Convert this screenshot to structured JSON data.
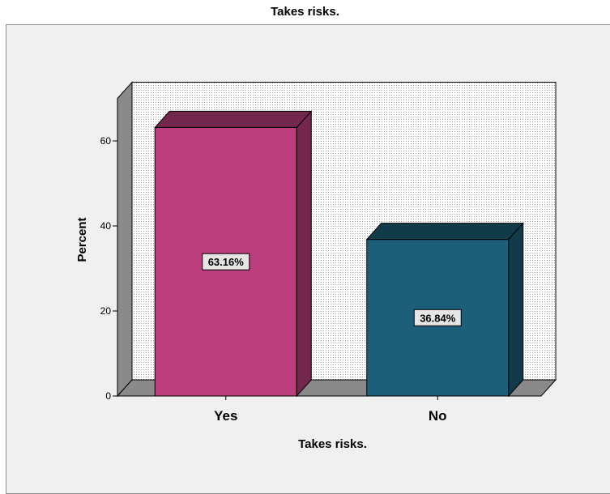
{
  "chart_data": {
    "type": "bar",
    "title": "Takes risks.",
    "xlabel": "Takes risks.",
    "ylabel": "Percent",
    "categories": [
      "Yes",
      "No"
    ],
    "values": [
      63.16,
      36.84
    ],
    "data_labels": [
      "63.16%",
      "36.84%"
    ],
    "colors": [
      "#bb3f7c",
      "#1d5f78"
    ],
    "ylim": [
      0,
      70
    ],
    "yticks": [
      0,
      20,
      40,
      60
    ],
    "grid": false,
    "style": "3d",
    "backwall_pattern": "dotted"
  }
}
